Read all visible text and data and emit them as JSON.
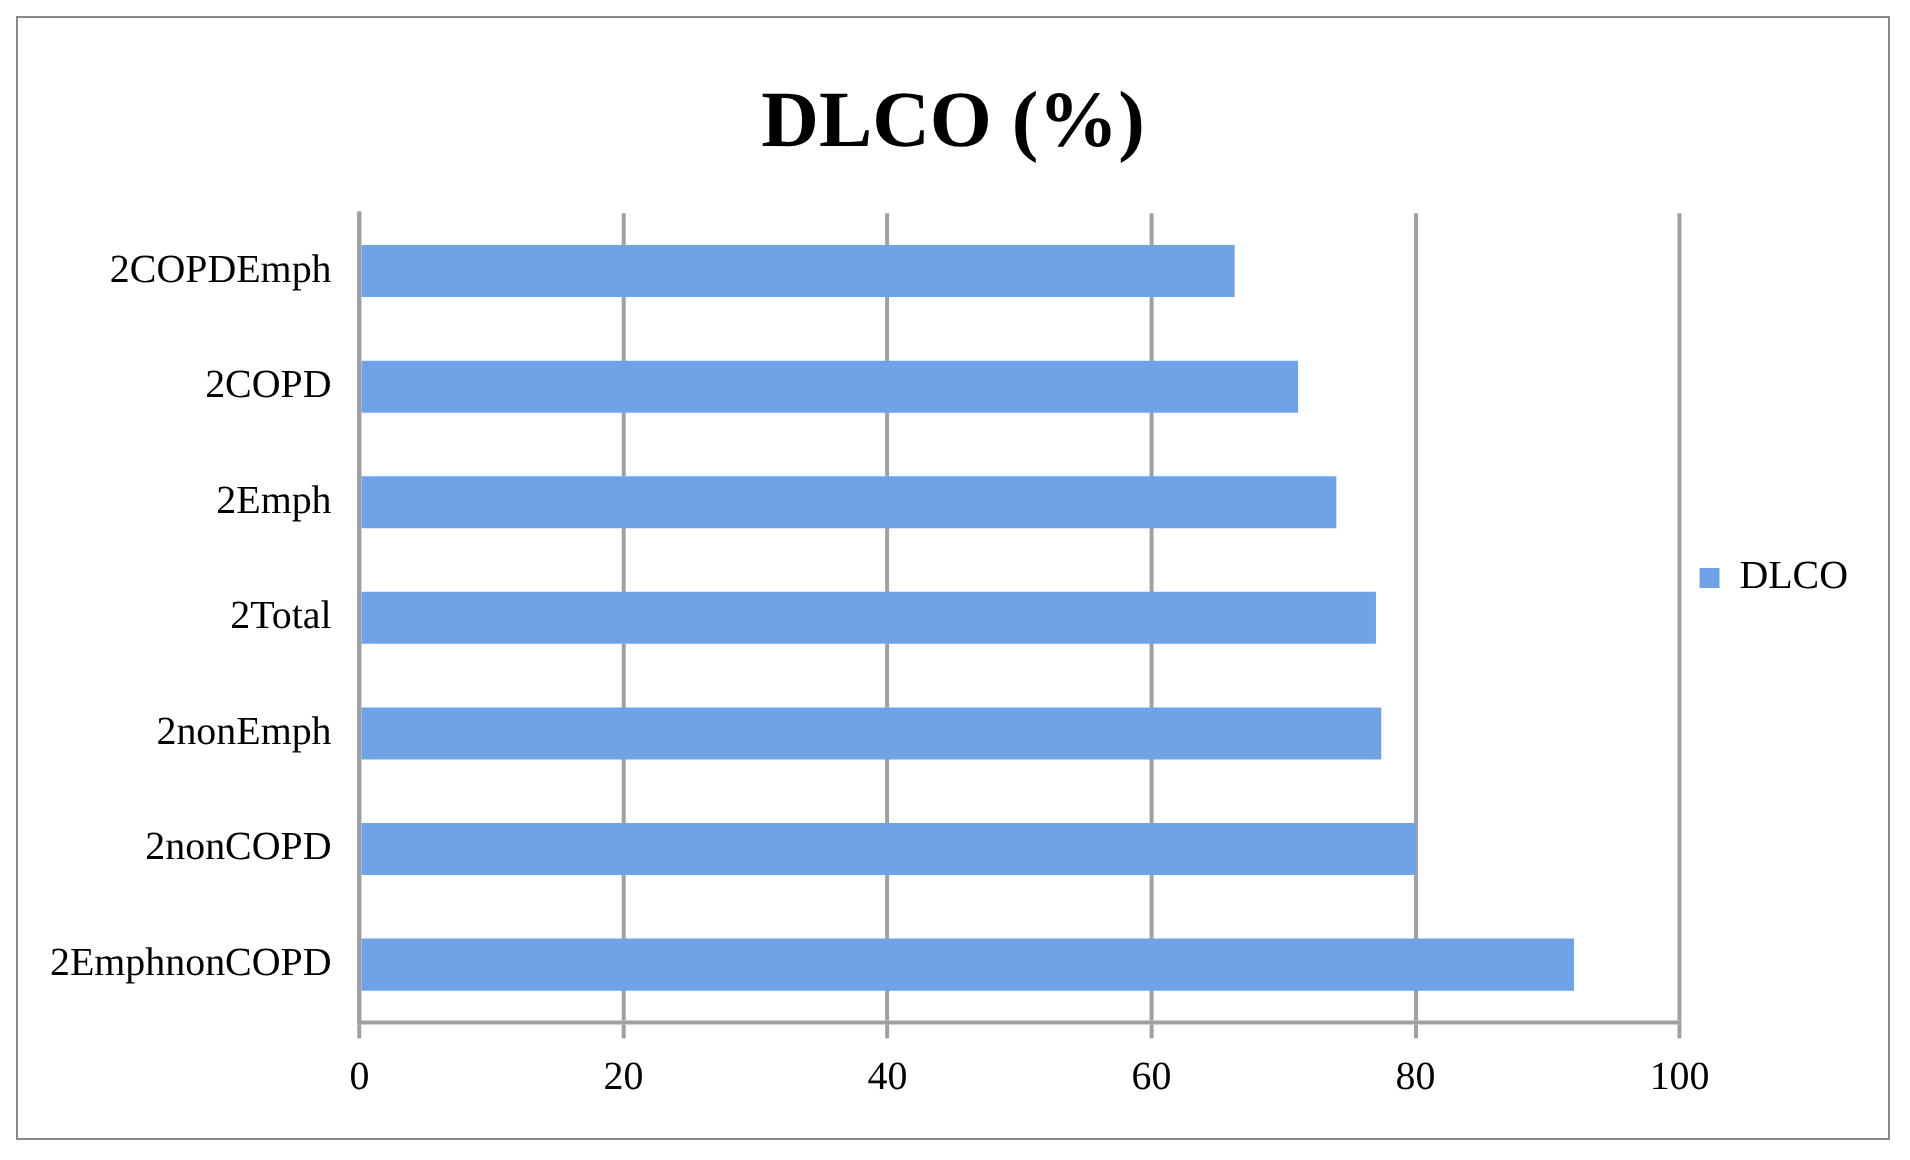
{
  "chart_data": {
    "type": "bar",
    "orientation": "horizontal",
    "title": "DLCO (%)",
    "categories": [
      "2COPDEmph",
      "2COPD",
      "2Emph",
      "2Total",
      "2nonEmph",
      "2nonCOPD",
      "2EmphnonCOPD"
    ],
    "series": [
      {
        "name": "DLCO",
        "color": "#6fa3e8",
        "values": [
          66.3,
          71.1,
          74.0,
          77.0,
          77.4,
          80.0,
          92.0
        ]
      }
    ],
    "xlim": [
      0,
      100
    ],
    "xticks": [
      0,
      20,
      40,
      60,
      80,
      100
    ],
    "grid": "x",
    "legend": "right"
  }
}
